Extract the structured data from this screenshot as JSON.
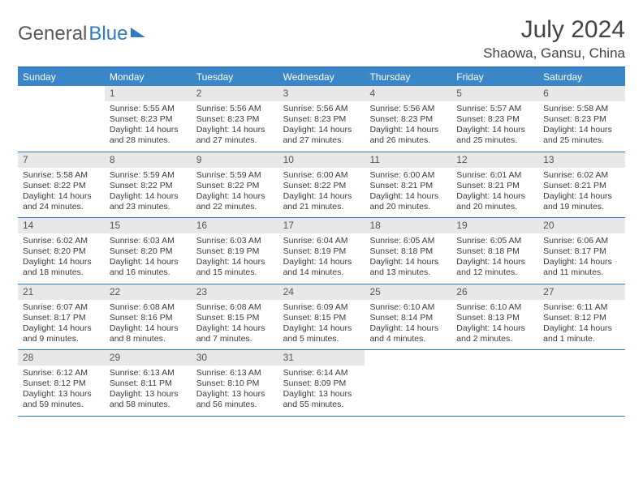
{
  "logo": {
    "word1": "General",
    "word2": "Blue"
  },
  "title": "July 2024",
  "location": "Shaowa, Gansu, China",
  "colors": {
    "header_bg": "#3b86c7",
    "header_border": "#2f7bbf",
    "daynum_bg": "#e8e8e8",
    "text": "#3b3b3b"
  },
  "dow": [
    "Sunday",
    "Monday",
    "Tuesday",
    "Wednesday",
    "Thursday",
    "Friday",
    "Saturday"
  ],
  "weeks": [
    [
      {
        "n": "",
        "empty": true
      },
      {
        "n": "1",
        "sr": "Sunrise: 5:55 AM",
        "ss": "Sunset: 8:23 PM",
        "dl": "Daylight: 14 hours and 28 minutes."
      },
      {
        "n": "2",
        "sr": "Sunrise: 5:56 AM",
        "ss": "Sunset: 8:23 PM",
        "dl": "Daylight: 14 hours and 27 minutes."
      },
      {
        "n": "3",
        "sr": "Sunrise: 5:56 AM",
        "ss": "Sunset: 8:23 PM",
        "dl": "Daylight: 14 hours and 27 minutes."
      },
      {
        "n": "4",
        "sr": "Sunrise: 5:56 AM",
        "ss": "Sunset: 8:23 PM",
        "dl": "Daylight: 14 hours and 26 minutes."
      },
      {
        "n": "5",
        "sr": "Sunrise: 5:57 AM",
        "ss": "Sunset: 8:23 PM",
        "dl": "Daylight: 14 hours and 25 minutes."
      },
      {
        "n": "6",
        "sr": "Sunrise: 5:58 AM",
        "ss": "Sunset: 8:23 PM",
        "dl": "Daylight: 14 hours and 25 minutes."
      }
    ],
    [
      {
        "n": "7",
        "sr": "Sunrise: 5:58 AM",
        "ss": "Sunset: 8:22 PM",
        "dl": "Daylight: 14 hours and 24 minutes."
      },
      {
        "n": "8",
        "sr": "Sunrise: 5:59 AM",
        "ss": "Sunset: 8:22 PM",
        "dl": "Daylight: 14 hours and 23 minutes."
      },
      {
        "n": "9",
        "sr": "Sunrise: 5:59 AM",
        "ss": "Sunset: 8:22 PM",
        "dl": "Daylight: 14 hours and 22 minutes."
      },
      {
        "n": "10",
        "sr": "Sunrise: 6:00 AM",
        "ss": "Sunset: 8:22 PM",
        "dl": "Daylight: 14 hours and 21 minutes."
      },
      {
        "n": "11",
        "sr": "Sunrise: 6:00 AM",
        "ss": "Sunset: 8:21 PM",
        "dl": "Daylight: 14 hours and 20 minutes."
      },
      {
        "n": "12",
        "sr": "Sunrise: 6:01 AM",
        "ss": "Sunset: 8:21 PM",
        "dl": "Daylight: 14 hours and 20 minutes."
      },
      {
        "n": "13",
        "sr": "Sunrise: 6:02 AM",
        "ss": "Sunset: 8:21 PM",
        "dl": "Daylight: 14 hours and 19 minutes."
      }
    ],
    [
      {
        "n": "14",
        "sr": "Sunrise: 6:02 AM",
        "ss": "Sunset: 8:20 PM",
        "dl": "Daylight: 14 hours and 18 minutes."
      },
      {
        "n": "15",
        "sr": "Sunrise: 6:03 AM",
        "ss": "Sunset: 8:20 PM",
        "dl": "Daylight: 14 hours and 16 minutes."
      },
      {
        "n": "16",
        "sr": "Sunrise: 6:03 AM",
        "ss": "Sunset: 8:19 PM",
        "dl": "Daylight: 14 hours and 15 minutes."
      },
      {
        "n": "17",
        "sr": "Sunrise: 6:04 AM",
        "ss": "Sunset: 8:19 PM",
        "dl": "Daylight: 14 hours and 14 minutes."
      },
      {
        "n": "18",
        "sr": "Sunrise: 6:05 AM",
        "ss": "Sunset: 8:18 PM",
        "dl": "Daylight: 14 hours and 13 minutes."
      },
      {
        "n": "19",
        "sr": "Sunrise: 6:05 AM",
        "ss": "Sunset: 8:18 PM",
        "dl": "Daylight: 14 hours and 12 minutes."
      },
      {
        "n": "20",
        "sr": "Sunrise: 6:06 AM",
        "ss": "Sunset: 8:17 PM",
        "dl": "Daylight: 14 hours and 11 minutes."
      }
    ],
    [
      {
        "n": "21",
        "sr": "Sunrise: 6:07 AM",
        "ss": "Sunset: 8:17 PM",
        "dl": "Daylight: 14 hours and 9 minutes."
      },
      {
        "n": "22",
        "sr": "Sunrise: 6:08 AM",
        "ss": "Sunset: 8:16 PM",
        "dl": "Daylight: 14 hours and 8 minutes."
      },
      {
        "n": "23",
        "sr": "Sunrise: 6:08 AM",
        "ss": "Sunset: 8:15 PM",
        "dl": "Daylight: 14 hours and 7 minutes."
      },
      {
        "n": "24",
        "sr": "Sunrise: 6:09 AM",
        "ss": "Sunset: 8:15 PM",
        "dl": "Daylight: 14 hours and 5 minutes."
      },
      {
        "n": "25",
        "sr": "Sunrise: 6:10 AM",
        "ss": "Sunset: 8:14 PM",
        "dl": "Daylight: 14 hours and 4 minutes."
      },
      {
        "n": "26",
        "sr": "Sunrise: 6:10 AM",
        "ss": "Sunset: 8:13 PM",
        "dl": "Daylight: 14 hours and 2 minutes."
      },
      {
        "n": "27",
        "sr": "Sunrise: 6:11 AM",
        "ss": "Sunset: 8:12 PM",
        "dl": "Daylight: 14 hours and 1 minute."
      }
    ],
    [
      {
        "n": "28",
        "sr": "Sunrise: 6:12 AM",
        "ss": "Sunset: 8:12 PM",
        "dl": "Daylight: 13 hours and 59 minutes."
      },
      {
        "n": "29",
        "sr": "Sunrise: 6:13 AM",
        "ss": "Sunset: 8:11 PM",
        "dl": "Daylight: 13 hours and 58 minutes."
      },
      {
        "n": "30",
        "sr": "Sunrise: 6:13 AM",
        "ss": "Sunset: 8:10 PM",
        "dl": "Daylight: 13 hours and 56 minutes."
      },
      {
        "n": "31",
        "sr": "Sunrise: 6:14 AM",
        "ss": "Sunset: 8:09 PM",
        "dl": "Daylight: 13 hours and 55 minutes."
      },
      {
        "n": "",
        "empty": true
      },
      {
        "n": "",
        "empty": true
      },
      {
        "n": "",
        "empty": true
      }
    ]
  ]
}
